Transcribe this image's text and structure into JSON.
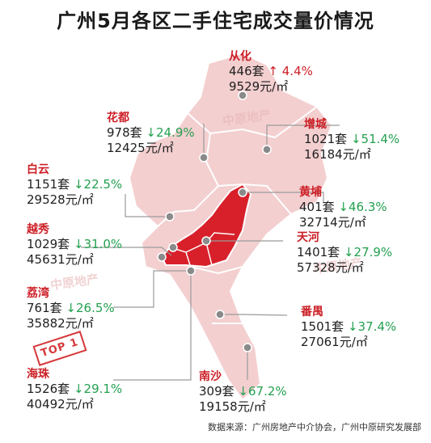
{
  "title": "广州5月各区二手住宅成交量价情况",
  "source": "数据来源：广州房地产中介协会，广州中原研究发展部",
  "stamp": "TOP 1",
  "watermark": "中原地产",
  "colors": {
    "hot": "#d8202a",
    "map": "#f3cfd0",
    "border": "#ffffff",
    "down": "#24a050",
    "up": "#cc1f26",
    "pin": "#8a8a8a"
  },
  "districts": [
    {
      "name": "从化",
      "count": "446套",
      "change": "↑ 4.4%",
      "dir": "up",
      "price": "9529元/㎡"
    },
    {
      "name": "花都",
      "count": "978套",
      "change": "↓24.9%",
      "dir": "down",
      "price": "12425元/㎡"
    },
    {
      "name": "增城",
      "count": "1021套",
      "change": "↓51.4%",
      "dir": "down",
      "price": "16184元/㎡"
    },
    {
      "name": "白云",
      "count": "1151套",
      "change": "↓22.5%",
      "dir": "down",
      "price": "29528元/㎡"
    },
    {
      "name": "黄埔",
      "count": "401套",
      "change": "↓46.3%",
      "dir": "down",
      "price": "32714元/㎡"
    },
    {
      "name": "越秀",
      "count": "1029套",
      "change": "↓31.0%",
      "dir": "down",
      "price": "45631元/㎡"
    },
    {
      "name": "天河",
      "count": "1401套",
      "change": "↓27.9%",
      "dir": "down",
      "price": "57328元/㎡"
    },
    {
      "name": "荔湾",
      "count": "761套",
      "change": "↓26.5%",
      "dir": "down",
      "price": "35882元/㎡"
    },
    {
      "name": "番禺",
      "count": "1501套",
      "change": "↓37.4%",
      "dir": "down",
      "price": "27061元/㎡"
    },
    {
      "name": "海珠",
      "count": "1526套",
      "change": "↓29.1%",
      "dir": "down",
      "price": "40492元/㎡"
    },
    {
      "name": "南沙",
      "count": "309套",
      "change": "↓67.2%",
      "dir": "down",
      "price": "19158元/㎡"
    }
  ]
}
